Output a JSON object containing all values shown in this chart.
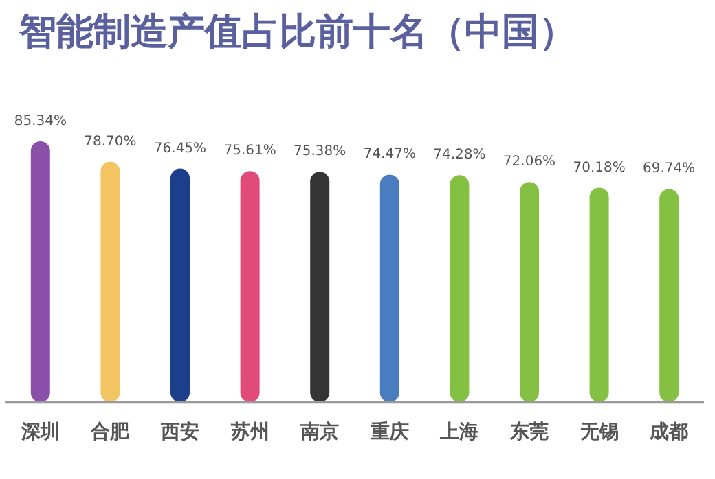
{
  "chart_data": {
    "type": "bar",
    "title": "智能制造产值占比前十名（中国）",
    "categories": [
      "深圳",
      "合肥",
      "西安",
      "苏州",
      "南京",
      "重庆",
      "上海",
      "东莞",
      "无锡",
      "成都"
    ],
    "values": [
      85.34,
      78.7,
      76.45,
      75.61,
      75.38,
      74.47,
      74.28,
      72.06,
      70.18,
      69.74
    ],
    "value_labels": [
      "85.34%",
      "78.70%",
      "76.45%",
      "75.61%",
      "75.38%",
      "74.47%",
      "74.28%",
      "72.06%",
      "70.18%",
      "69.74%"
    ],
    "colors": [
      "#8a4fa8",
      "#f3c562",
      "#1c3f8c",
      "#e04b7a",
      "#343434",
      "#4a7dc0",
      "#84c041",
      "#84c041",
      "#84c041",
      "#84c041"
    ]
  }
}
